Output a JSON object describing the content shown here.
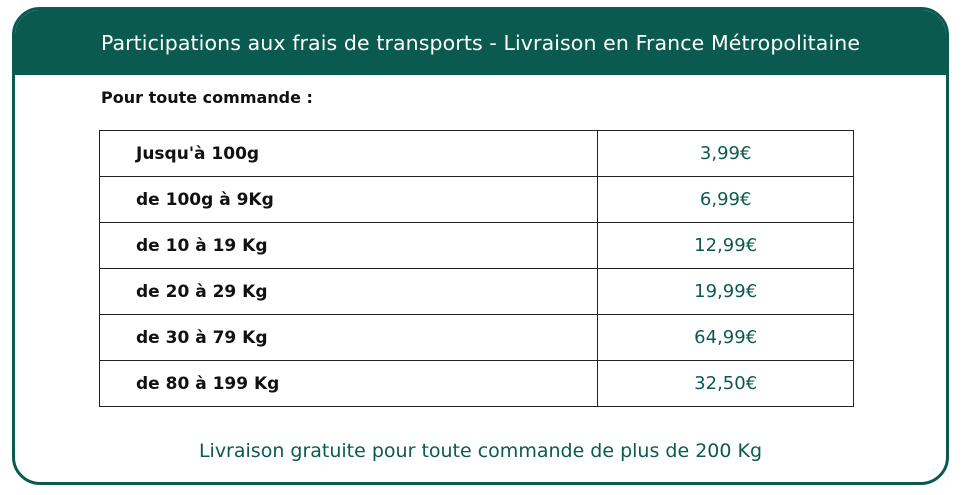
{
  "header": {
    "title": "Participations aux frais de transports - Livraison en France Métropolitaine"
  },
  "intro": "Pour toute commande :",
  "rates": [
    {
      "weight": "Jusqu'à 100g",
      "price": "3,99€"
    },
    {
      "weight": "de 100g à 9Kg",
      "price": "6,99€"
    },
    {
      "weight": "de 10 à 19 Kg",
      "price": "12,99€"
    },
    {
      "weight": "de 20 à 29 Kg",
      "price": "19,99€"
    },
    {
      "weight": "de 30 à 79 Kg",
      "price": "64,99€"
    },
    {
      "weight": "de 80 à 199 Kg",
      "price": "32,50€"
    }
  ],
  "footer": "Livraison gratuite pour toute commande de plus de 200 Kg",
  "colors": {
    "brand": "#0b5a50",
    "text": "#111111",
    "border": "#222222"
  }
}
